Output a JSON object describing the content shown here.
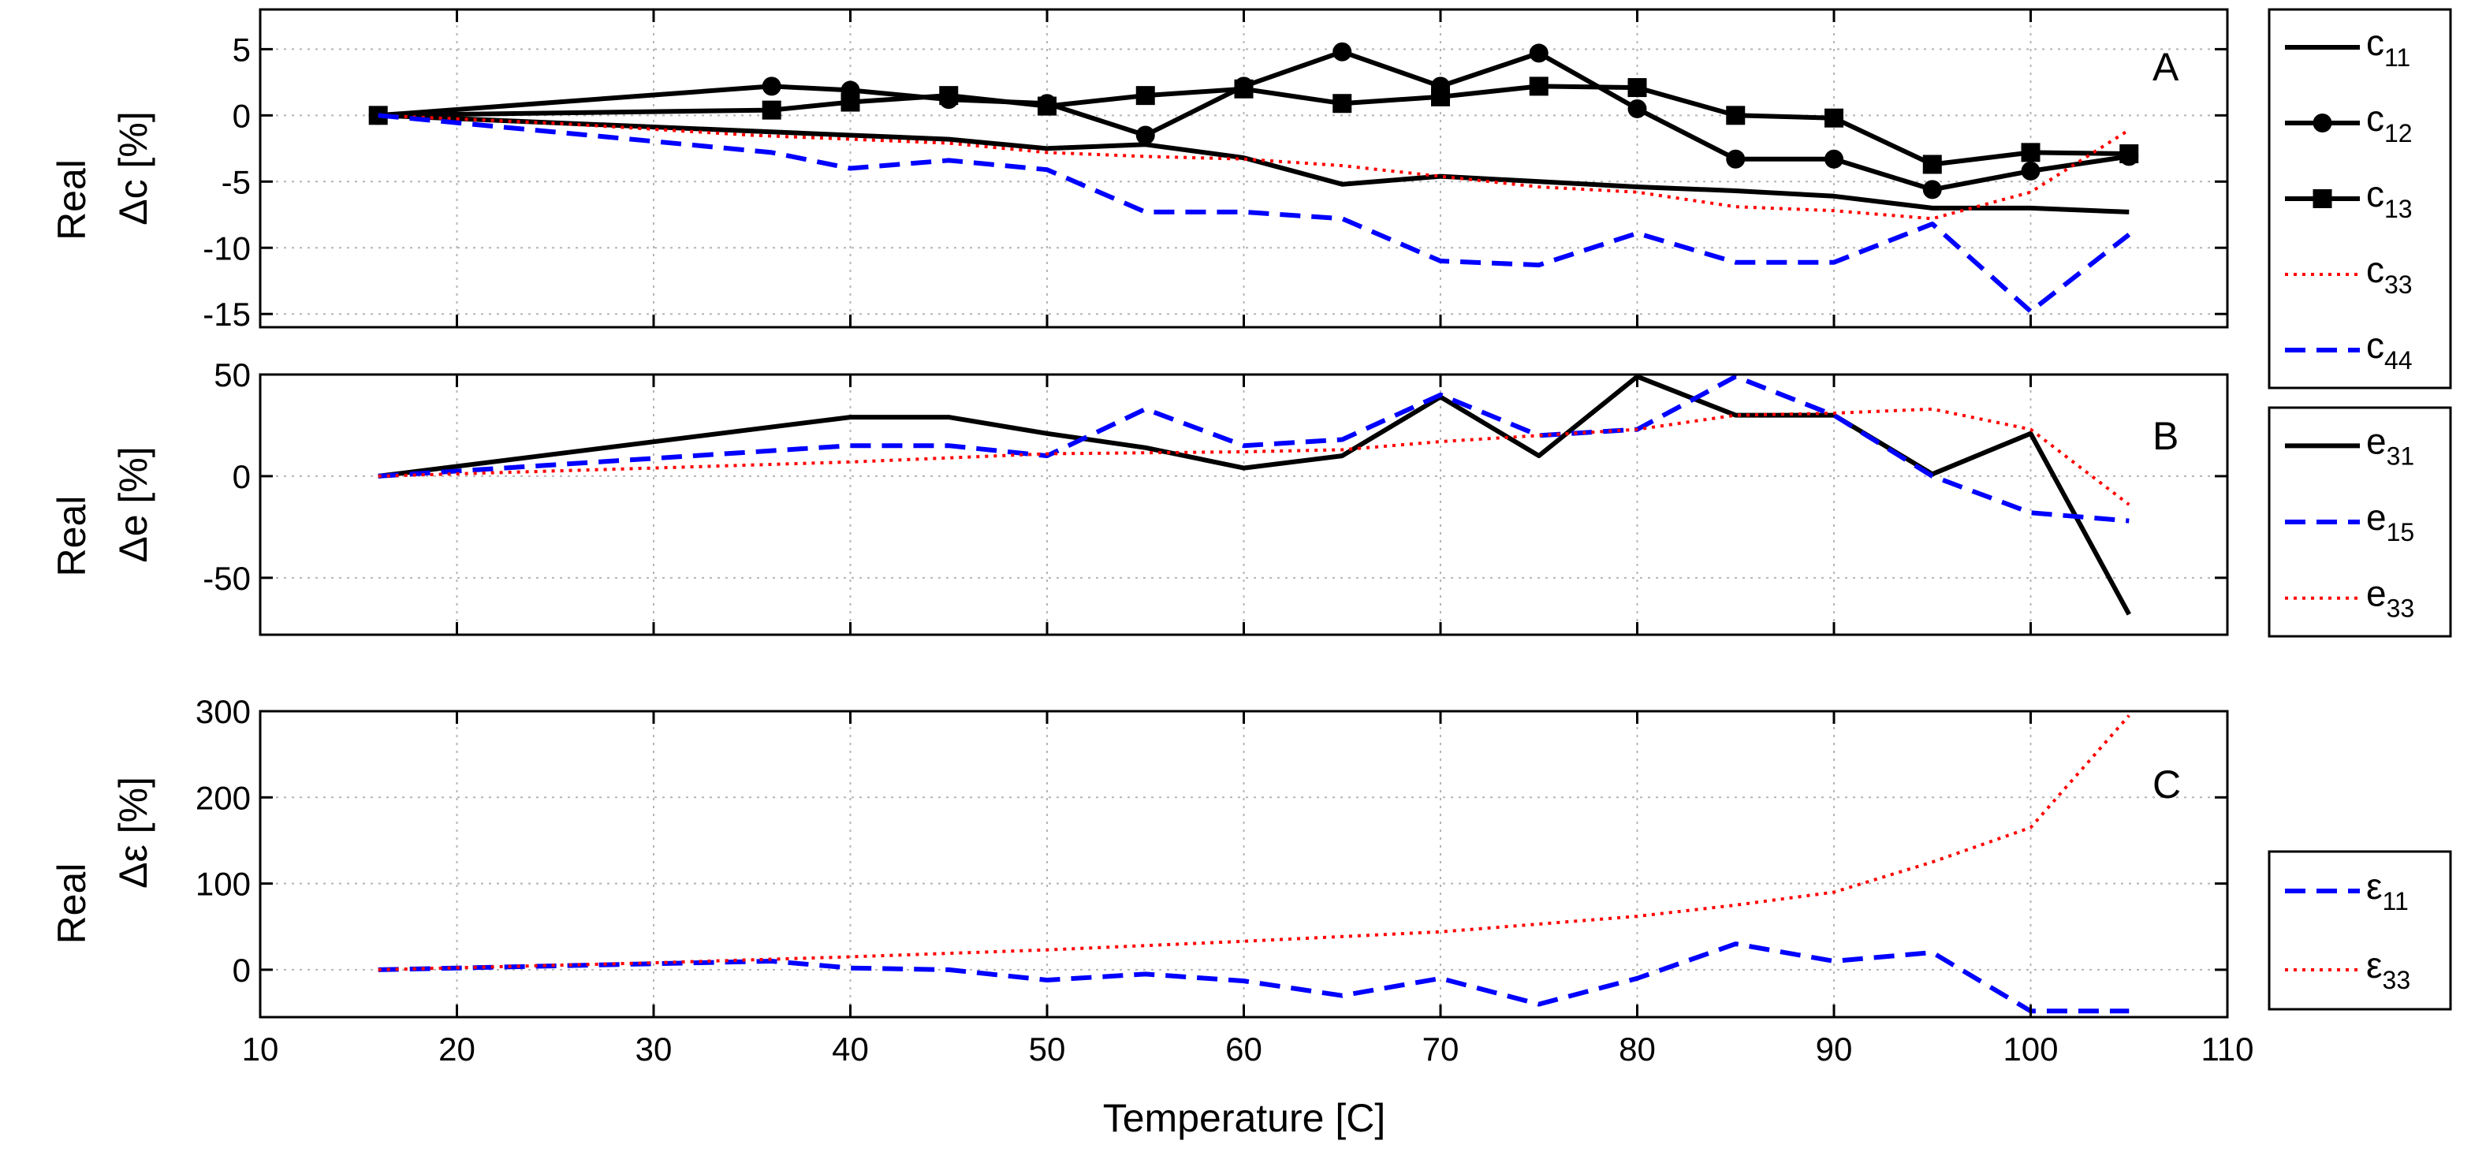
{
  "colors": {
    "black": "#000000",
    "blue": "#0000ff",
    "red": "#ff0000",
    "grid": "#b4b4b4"
  },
  "xaxis": {
    "label": "Temperature [C]",
    "range": [
      10,
      110
    ],
    "ticks": [
      10,
      20,
      30,
      40,
      50,
      60,
      70,
      80,
      90,
      100,
      110
    ]
  },
  "chart_data": [
    {
      "id": "A",
      "type": "line",
      "panel_letter": "A",
      "ylabel_left": "Real",
      "ylabel": "Δc [%]",
      "ylim": [
        -16,
        8
      ],
      "yticks": [
        5,
        0,
        -5,
        -10,
        -15
      ],
      "grid": true,
      "legend": [
        {
          "key": "c11",
          "base": "c",
          "sub": "11",
          "color": "#000000",
          "style": "solid",
          "marker": "none"
        },
        {
          "key": "c12",
          "base": "c",
          "sub": "12",
          "color": "#000000",
          "style": "solid",
          "marker": "circle"
        },
        {
          "key": "c13",
          "base": "c",
          "sub": "13",
          "color": "#000000",
          "style": "solid",
          "marker": "square"
        },
        {
          "key": "c33",
          "base": "c",
          "sub": "33",
          "color": "#ff0000",
          "style": "dotted",
          "marker": "none"
        },
        {
          "key": "c44",
          "base": "c",
          "sub": "44",
          "color": "#0000ff",
          "style": "dashed",
          "marker": "none"
        }
      ],
      "series": [
        {
          "key": "c11",
          "x": [
            16,
            40,
            45,
            50,
            55,
            60,
            65,
            70,
            75,
            80,
            85,
            90,
            95,
            100,
            105
          ],
          "values": [
            0,
            -1.5,
            -1.8,
            -2.5,
            -2.2,
            -3.2,
            -5.2,
            -4.6,
            -5.0,
            -5.4,
            -5.7,
            -6.1,
            -7.0,
            -7.0,
            -7.3
          ]
        },
        {
          "key": "c12",
          "x": [
            16,
            36,
            40,
            45,
            50,
            55,
            60,
            65,
            70,
            75,
            80,
            85,
            90,
            95,
            100,
            105
          ],
          "values": [
            0,
            2.2,
            1.9,
            1.2,
            0.9,
            -1.5,
            2.2,
            4.8,
            2.2,
            4.7,
            0.5,
            -3.3,
            -3.3,
            -5.6,
            -4.2,
            -3.1
          ]
        },
        {
          "key": "c13",
          "x": [
            16,
            36,
            40,
            45,
            50,
            55,
            60,
            65,
            70,
            75,
            80,
            85,
            90,
            95,
            100,
            105
          ],
          "values": [
            0,
            0.4,
            1.0,
            1.5,
            0.7,
            1.5,
            2.0,
            0.9,
            1.4,
            2.2,
            2.1,
            0.0,
            -0.2,
            -3.7,
            -2.8,
            -2.9
          ]
        },
        {
          "key": "c33",
          "x": [
            16,
            25,
            35,
            45,
            50,
            55,
            60,
            65,
            70,
            75,
            80,
            85,
            90,
            95,
            100,
            105
          ],
          "values": [
            0,
            -0.6,
            -1.5,
            -2.1,
            -2.8,
            -3.1,
            -3.3,
            -3.8,
            -4.6,
            -5.4,
            -5.8,
            -6.9,
            -7.2,
            -7.8,
            -5.8,
            -1.1
          ]
        },
        {
          "key": "c44",
          "x": [
            16,
            36,
            40,
            45,
            50,
            55,
            60,
            65,
            70,
            75,
            80,
            85,
            90,
            95,
            100,
            105
          ],
          "values": [
            0,
            -2.8,
            -4.0,
            -3.4,
            -4.1,
            -7.3,
            -7.3,
            -7.8,
            -11.0,
            -11.3,
            -8.9,
            -11.1,
            -11.1,
            -8.2,
            -14.8,
            -9.0
          ]
        }
      ]
    },
    {
      "id": "B",
      "type": "line",
      "panel_letter": "B",
      "ylabel_left": "Real",
      "ylabel": "Δe [%]",
      "ylim": [
        -78,
        50
      ],
      "yticks": [
        50,
        0,
        -50
      ],
      "grid": true,
      "legend": [
        {
          "key": "e31",
          "base": "e",
          "sub": "31",
          "color": "#000000",
          "style": "solid",
          "marker": "none"
        },
        {
          "key": "e15",
          "base": "e",
          "sub": "15",
          "color": "#0000ff",
          "style": "dashed",
          "marker": "none"
        },
        {
          "key": "e33",
          "base": "e",
          "sub": "33",
          "color": "#ff0000",
          "style": "dotted",
          "marker": "none"
        }
      ],
      "series": [
        {
          "key": "e31",
          "x": [
            16,
            40,
            45,
            50,
            55,
            60,
            65,
            70,
            75,
            80,
            85,
            90,
            95,
            100,
            105
          ],
          "values": [
            0,
            29,
            29,
            21,
            14,
            4,
            10,
            39,
            10,
            49,
            30,
            30,
            1,
            21,
            -68
          ]
        },
        {
          "key": "e15",
          "x": [
            16,
            40,
            45,
            50,
            55,
            60,
            65,
            70,
            75,
            80,
            85,
            90,
            95,
            100,
            105
          ],
          "values": [
            0,
            15,
            15,
            10,
            33,
            15,
            18,
            40,
            20,
            23,
            49,
            30,
            0,
            -18,
            -22
          ]
        },
        {
          "key": "e33",
          "x": [
            16,
            30,
            40,
            50,
            60,
            65,
            70,
            75,
            80,
            85,
            90,
            95,
            100,
            105
          ],
          "values": [
            0,
            4,
            7,
            11,
            12,
            13,
            17,
            20,
            23,
            30,
            31,
            33,
            23,
            -14
          ]
        }
      ]
    },
    {
      "id": "C",
      "type": "line",
      "panel_letter": "C",
      "ylabel_left": "Real",
      "ylabel": "Δε [%]",
      "ylim": [
        -55,
        300
      ],
      "yticks": [
        300,
        200,
        100,
        0
      ],
      "grid": true,
      "legend": [
        {
          "key": "eps11",
          "base": "ε",
          "sub": "11",
          "color": "#0000ff",
          "style": "dashed",
          "marker": "none"
        },
        {
          "key": "eps33",
          "base": "ε",
          "sub": "33",
          "color": "#ff0000",
          "style": "dotted",
          "marker": "none"
        }
      ],
      "series": [
        {
          "key": "eps11",
          "x": [
            16,
            36,
            40,
            45,
            50,
            55,
            60,
            65,
            70,
            75,
            80,
            85,
            90,
            95,
            100,
            105
          ],
          "values": [
            0,
            10,
            2,
            0,
            -12,
            -5,
            -13,
            -30,
            -10,
            -40,
            -10,
            30,
            10,
            20,
            -48,
            -48
          ]
        },
        {
          "key": "eps33",
          "x": [
            16,
            30,
            40,
            50,
            60,
            70,
            80,
            85,
            90,
            95,
            100,
            105
          ],
          "values": [
            0,
            8,
            15,
            23,
            33,
            44,
            62,
            75,
            90,
            125,
            165,
            295
          ]
        }
      ]
    }
  ]
}
